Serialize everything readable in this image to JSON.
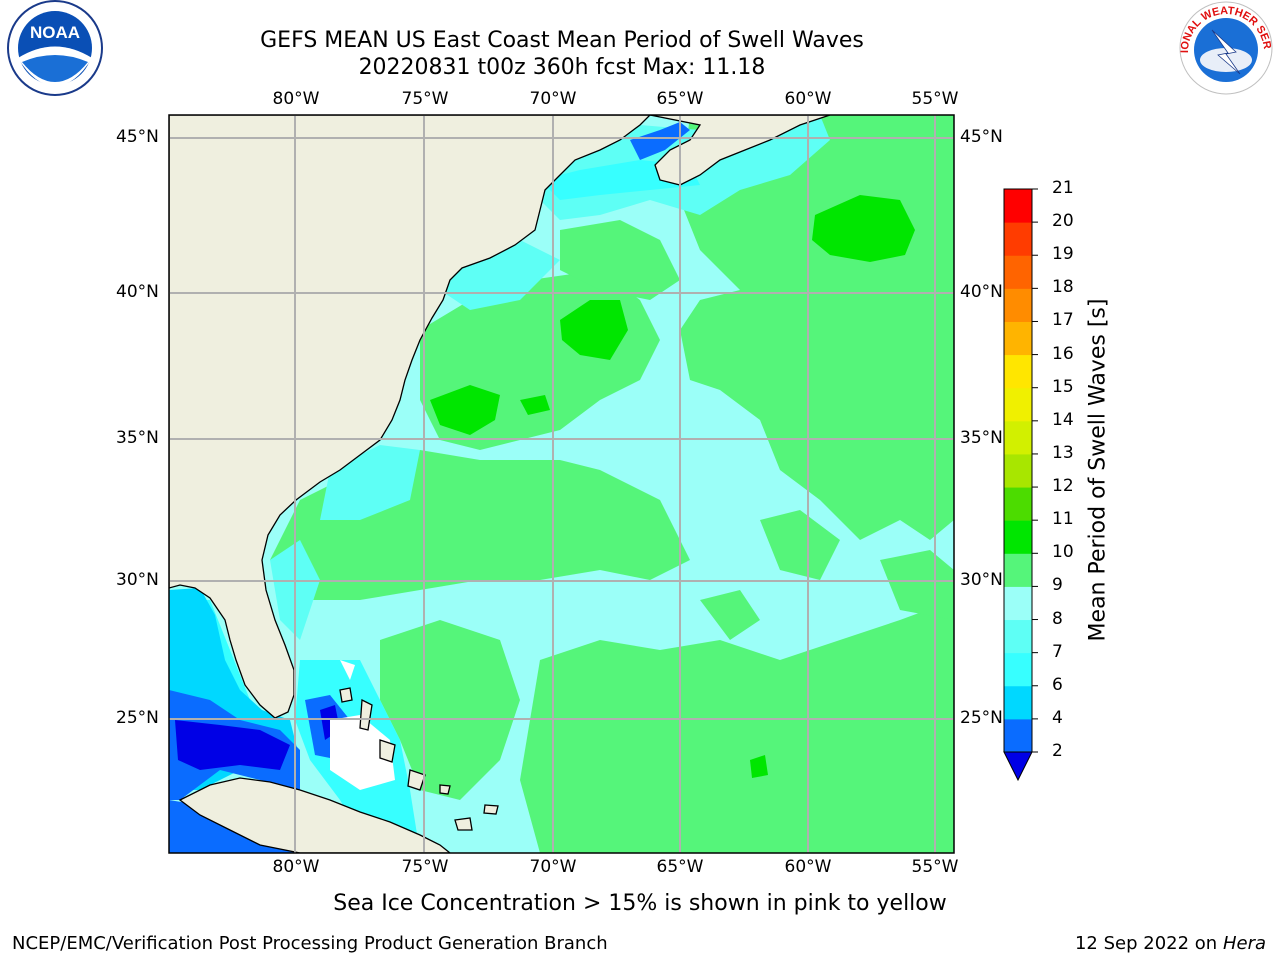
{
  "title": {
    "line1": "GEFS MEAN US East Coast Mean Period of Swell Waves",
    "line2": "20220831 t00z 360h fcst   Max: 11.18"
  },
  "axes": {
    "lon_labels": [
      "80°W",
      "75°W",
      "70°W",
      "65°W",
      "60°W",
      "55°W"
    ],
    "lat_labels": [
      "45°N",
      "40°N",
      "35°N",
      "30°N",
      "25°N"
    ]
  },
  "colorbar": {
    "label": "Mean Period of Swell Waves [s]",
    "ticks": [
      "2",
      "4",
      "6",
      "7",
      "8",
      "9",
      "10",
      "11",
      "12",
      "13",
      "14",
      "15",
      "16",
      "17",
      "18",
      "19",
      "20",
      "21"
    ],
    "colors": {
      "2-4": "#0a6cff",
      "4-6": "#00d8ff",
      "6-7": "#37ffff",
      "7-8": "#5efff5",
      "8-9": "#9bfff8",
      "9-10": "#55f57a",
      "10-11": "#00e600",
      "11-12": "#4cdc00",
      "12-13": "#a8e600",
      "13-14": "#d2f000",
      "14-15": "#f0f000",
      "15-16": "#ffe600",
      "16-17": "#ffb400",
      "17-18": "#ff8c00",
      "18-19": "#ff6400",
      "19-20": "#ff3c00",
      "20-21": "#ff0000",
      "under": "#0000e6"
    }
  },
  "note": "Sea Ice Concentration > 15% is shown in pink to yellow",
  "footer": {
    "left": "NCEP/EMC/Verification Post Processing Product Generation Branch",
    "right_date": "12 Sep 2022 on",
    "right_machine": "Hera"
  },
  "logos": {
    "noaa_text": "NOAA",
    "nws_text": "NATIONAL WEATHER SERVICE"
  },
  "colors": {
    "land": "#efefdf",
    "ocean_dominant": "#9bfff8",
    "grid": "#b0b0b0"
  }
}
